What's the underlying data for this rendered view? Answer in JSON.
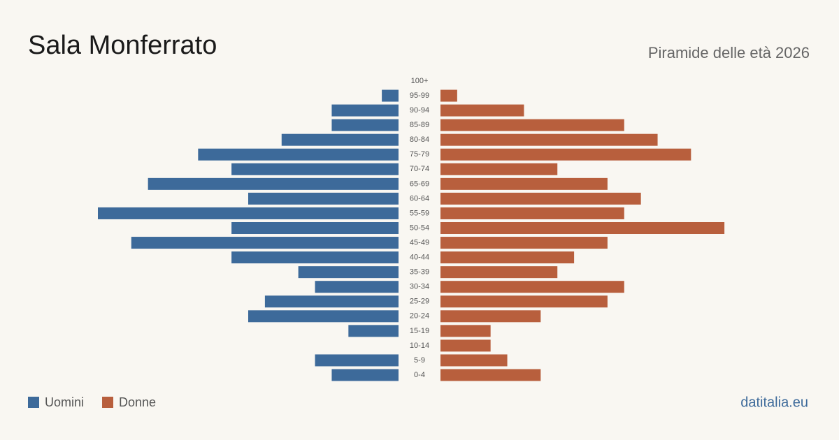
{
  "chart_data": {
    "type": "population-pyramid",
    "title": "Sala Monferrato",
    "subtitle": "Piramide delle età 2026",
    "source": "datitalia.eu",
    "categories": [
      "100+",
      "95-99",
      "90-94",
      "85-89",
      "80-84",
      "75-79",
      "70-74",
      "65-69",
      "60-64",
      "55-59",
      "50-54",
      "45-49",
      "40-44",
      "35-39",
      "30-34",
      "25-29",
      "20-24",
      "15-19",
      "10-14",
      "5-9",
      "0-4"
    ],
    "series": [
      {
        "name": "Uomini",
        "color": "#3d6a9a",
        "values": [
          0,
          1,
          4,
          4,
          7,
          12,
          10,
          15,
          9,
          18,
          10,
          16,
          10,
          6,
          5,
          8,
          9,
          3,
          0,
          5,
          4
        ]
      },
      {
        "name": "Donne",
        "color": "#b85f3d",
        "values": [
          0,
          1,
          5,
          11,
          13,
          15,
          7,
          10,
          12,
          11,
          17,
          10,
          8,
          7,
          11,
          10,
          6,
          3,
          3,
          4,
          6
        ]
      }
    ]
  }
}
